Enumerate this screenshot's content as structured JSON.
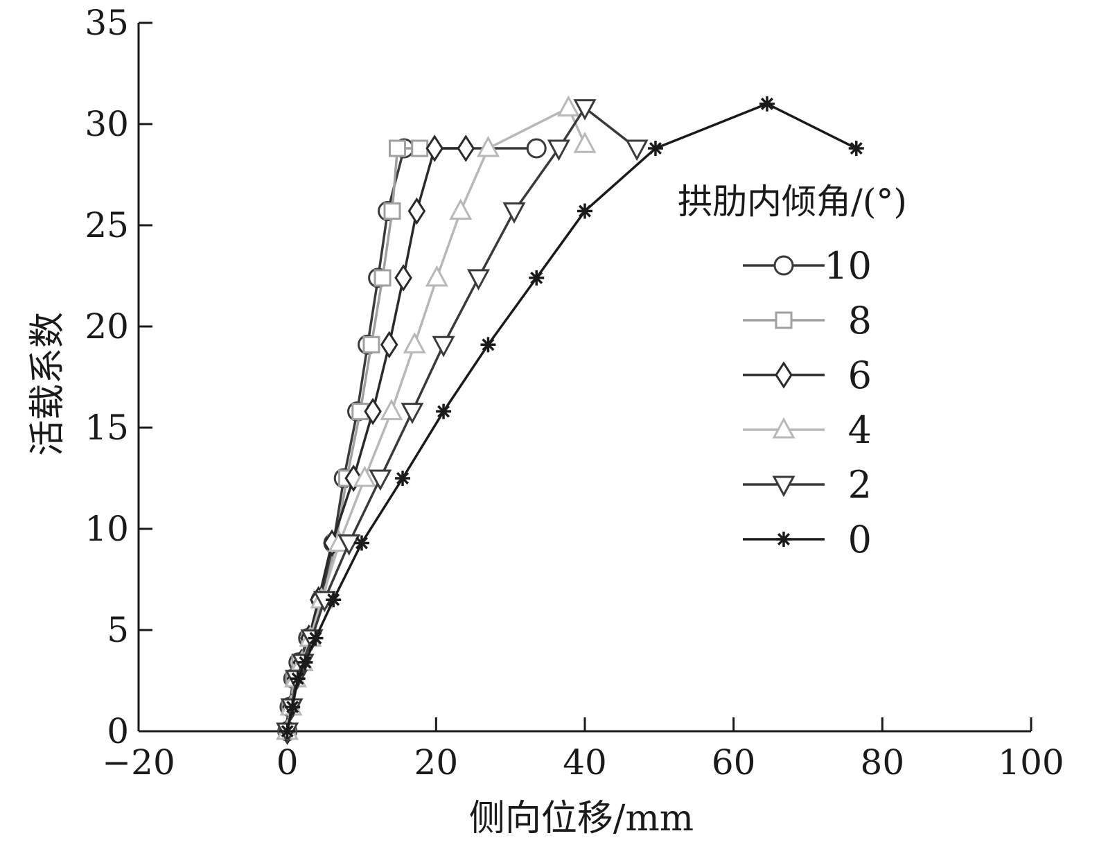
{
  "chart_data": {
    "type": "line",
    "xlabel": "侧向位移/mm",
    "ylabel": "活载系数",
    "xlim": [
      -20,
      100
    ],
    "ylim": [
      0,
      35
    ],
    "xticks": [
      -20,
      0,
      20,
      40,
      60,
      80,
      100
    ],
    "yticks": [
      0,
      5,
      10,
      15,
      20,
      25,
      30,
      35
    ],
    "grid": false,
    "legend": {
      "title": "拱肋内倾角/(°)",
      "placement": "right"
    },
    "series": [
      {
        "name": "10",
        "marker": "circle",
        "color": "#3a3a3a",
        "x": [
          0,
          0.3,
          0.8,
          1.5,
          2.8,
          4.5,
          6.2,
          7.6,
          9.4,
          10.8,
          12.2,
          13.5,
          15.7,
          33.5
        ],
        "y": [
          0,
          1.2,
          2.6,
          3.4,
          4.6,
          6.5,
          9.3,
          12.5,
          15.8,
          19.1,
          22.4,
          25.7,
          28.8,
          28.8
        ]
      },
      {
        "name": "8",
        "marker": "square",
        "color": "#a0a0a0",
        "x": [
          0,
          0.4,
          0.9,
          1.7,
          3.0,
          4.8,
          6.5,
          8.0,
          9.8,
          11.3,
          12.8,
          14.1,
          14.8,
          17.8
        ],
        "y": [
          0,
          1.2,
          2.6,
          3.4,
          4.6,
          6.5,
          9.3,
          12.5,
          15.8,
          19.1,
          22.4,
          25.7,
          28.8,
          28.8
        ]
      },
      {
        "name": "6",
        "marker": "diamond",
        "color": "#2a2a2a",
        "x": [
          0,
          0.5,
          1.1,
          1.9,
          2.9,
          4.2,
          6.0,
          8.9,
          11.5,
          13.7,
          15.6,
          17.4,
          19.8,
          24.0
        ],
        "y": [
          0,
          1.2,
          2.6,
          3.4,
          4.6,
          6.5,
          9.3,
          12.5,
          15.8,
          19.1,
          22.4,
          25.7,
          28.8,
          28.8
        ]
      },
      {
        "name": "4",
        "marker": "triangle-up",
        "color": "#b8b8b8",
        "x": [
          0,
          0.5,
          1.1,
          2.0,
          3.1,
          4.6,
          7.0,
          10.4,
          14.0,
          17.1,
          20.1,
          23.3,
          27.0,
          37.8,
          40.0
        ],
        "y": [
          0,
          1.2,
          2.6,
          3.4,
          4.6,
          6.5,
          9.3,
          12.5,
          15.8,
          19.1,
          22.4,
          25.7,
          28.8,
          30.8,
          29.0
        ]
      },
      {
        "name": "2",
        "marker": "triangle-down",
        "color": "#3a3a3a",
        "x": [
          0,
          0.6,
          1.2,
          2.1,
          3.3,
          5.0,
          8.3,
          12.5,
          16.8,
          21.0,
          25.7,
          30.5,
          36.5,
          40.0,
          47.0
        ],
        "y": [
          0,
          1.2,
          2.6,
          3.4,
          4.6,
          6.5,
          9.3,
          12.5,
          15.8,
          19.1,
          22.4,
          25.7,
          28.8,
          30.8,
          28.8
        ]
      },
      {
        "name": "0",
        "marker": "star",
        "color": "#1a1a1a",
        "x": [
          0,
          0.7,
          1.4,
          2.4,
          3.8,
          6.2,
          10.0,
          15.5,
          21.0,
          27.0,
          33.5,
          40.0,
          49.5,
          64.5,
          76.5
        ],
        "y": [
          0,
          1.2,
          2.6,
          3.4,
          4.6,
          6.5,
          9.3,
          12.5,
          15.8,
          19.1,
          22.4,
          25.7,
          28.8,
          31.0,
          28.8
        ]
      }
    ]
  }
}
